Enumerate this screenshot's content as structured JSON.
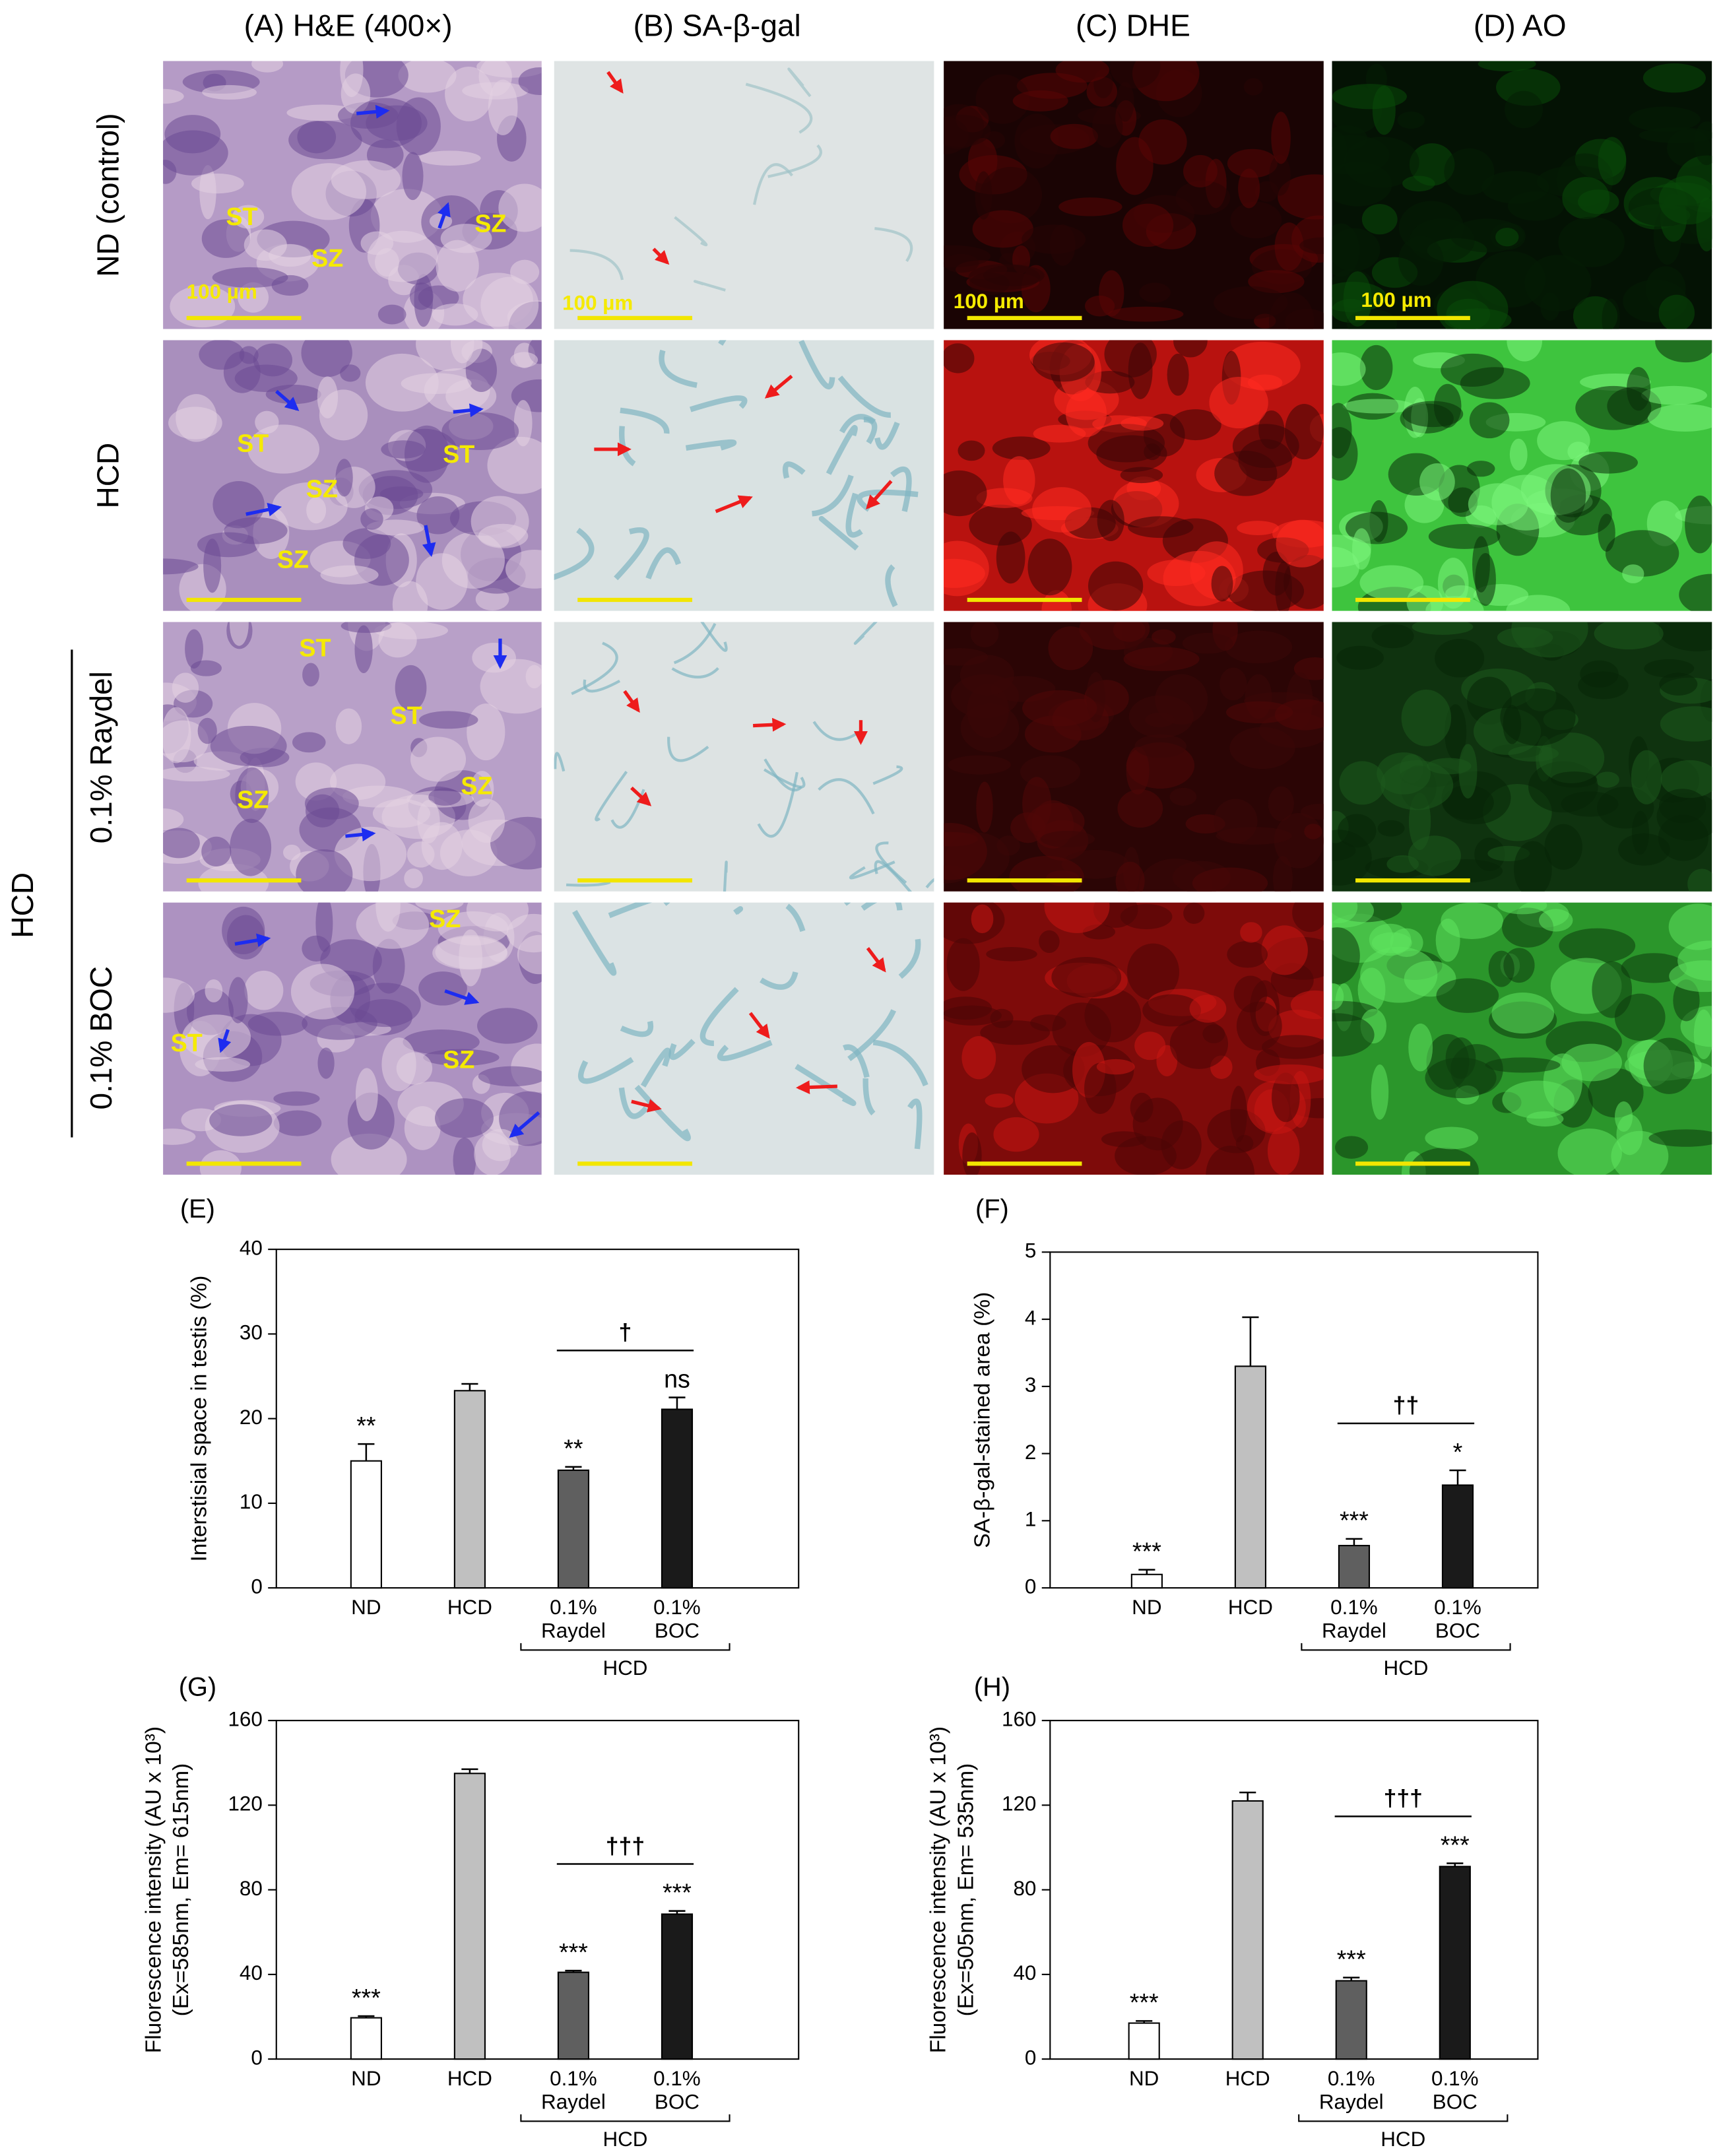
{
  "micrographs": {
    "column_titles": [
      "(A) H&E (400×)",
      "(B) SA-β-gal",
      "(C) DHE",
      "(D) AO"
    ],
    "row_labels": [
      "ND (control)",
      "HCD",
      "0.1% Raydel",
      "0.1% BOC"
    ],
    "group_label": "HCD",
    "he_labels": [
      [
        "ST",
        "SZ",
        "SZ"
      ],
      [
        "ST",
        "ST",
        "SZ",
        "SZ"
      ],
      [
        "ST",
        "ST",
        "SZ",
        "SZ"
      ],
      [
        "SZ",
        "ST",
        "SZ"
      ]
    ],
    "scale_labels": [
      "100 µm",
      "100 µm",
      "100 µm",
      "100 µm"
    ]
  },
  "chart_data": [
    {
      "type": "bar",
      "panel_label": "(E)",
      "y_label": [
        "Interstisial space in testis (%)"
      ],
      "categories": [
        "ND",
        "HCD",
        "0.1%\nRaydel",
        "0.1%\nBOC"
      ],
      "values": [
        15,
        23.3,
        13.9,
        21.1
      ],
      "errors": [
        2,
        0.8,
        0.4,
        1.4
      ],
      "colors": [
        "#ffffff",
        "#c0c0c0",
        "#5f5f5f",
        "#1a1a1a"
      ],
      "significance": [
        "**",
        null,
        "**",
        "ns"
      ],
      "bracket_label": "†",
      "group_label": "HCD",
      "ylim": [
        0,
        40
      ],
      "yticks": [
        0,
        10,
        20,
        30,
        40
      ]
    },
    {
      "type": "bar",
      "panel_label": "(F)",
      "y_label": [
        "SA-β-gal-stained area (%)"
      ],
      "categories": [
        "ND",
        "HCD",
        "0.1%\nRaydel",
        "0.1%\nBOC"
      ],
      "values": [
        0.2,
        3.3,
        0.63,
        1.53
      ],
      "errors": [
        0.07,
        0.73,
        0.1,
        0.22
      ],
      "colors": [
        "#ffffff",
        "#c0c0c0",
        "#5f5f5f",
        "#1a1a1a"
      ],
      "significance": [
        "***",
        null,
        "***",
        "*"
      ],
      "bracket_label": "††",
      "group_label": "HCD",
      "ylim": [
        0,
        5
      ],
      "yticks": [
        0,
        1,
        2,
        3,
        4,
        5
      ]
    },
    {
      "type": "bar",
      "panel_label": "(G)",
      "y_label": [
        "Fluorescence intensity (AU x 10³)",
        "(Ex=585nm, Em= 615nm)"
      ],
      "categories": [
        "ND",
        "HCD",
        "0.1%\nRaydel",
        "0.1%\nBOC"
      ],
      "values": [
        19.5,
        135,
        41,
        68.5
      ],
      "errors": [
        0.8,
        2,
        0.8,
        1.5
      ],
      "colors": [
        "#ffffff",
        "#c0c0c0",
        "#5f5f5f",
        "#1a1a1a"
      ],
      "significance": [
        "***",
        null,
        "***",
        "***"
      ],
      "bracket_label": "†††",
      "group_label": "HCD",
      "ylim": [
        0,
        160
      ],
      "yticks": [
        0,
        40,
        80,
        120,
        160
      ]
    },
    {
      "type": "bar",
      "panel_label": "(H)",
      "y_label": [
        "Fluorescence intensity (AU x 10³)",
        "(Ex=505nm, Em= 535nm)"
      ],
      "categories": [
        "ND",
        "HCD",
        "0.1%\nRaydel",
        "0.1%\nBOC"
      ],
      "values": [
        17,
        122,
        37,
        91
      ],
      "errors": [
        1,
        4,
        1.5,
        1.5
      ],
      "colors": [
        "#ffffff",
        "#c0c0c0",
        "#5f5f5f",
        "#1a1a1a"
      ],
      "significance": [
        "***",
        null,
        "***",
        "***"
      ],
      "bracket_label": "†††",
      "group_label": "HCD",
      "ylim": [
        0,
        160
      ],
      "yticks": [
        0,
        40,
        80,
        120,
        160
      ]
    }
  ]
}
